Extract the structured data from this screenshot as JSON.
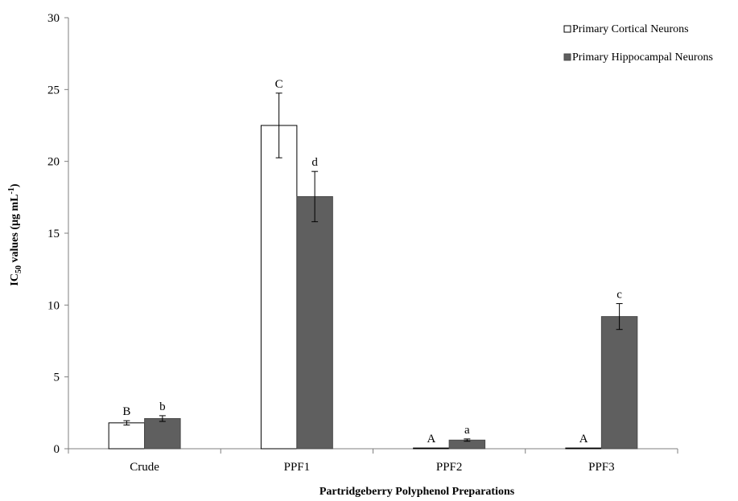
{
  "chart_data": {
    "type": "bar",
    "categories": [
      "Crude",
      "PPF1",
      "PPF2",
      "PPF3"
    ],
    "series": [
      {
        "name": "Primary Cortical Neurons",
        "values": [
          1.8,
          22.5,
          0.05,
          0.05
        ],
        "errors": [
          0.15,
          2.25,
          0.0,
          0.0
        ],
        "sig_labels": [
          "B",
          "C",
          "A",
          "A"
        ],
        "fill": "#ffffff",
        "stroke": "#000000"
      },
      {
        "name": "Primary Hippocampal Neurons",
        "values": [
          2.1,
          17.55,
          0.6,
          9.2
        ],
        "errors": [
          0.2,
          1.75,
          0.08,
          0.9
        ],
        "sig_labels": [
          "b",
          "d",
          "a",
          "c"
        ],
        "fill": "#5f5f5f",
        "stroke": "#4a4a4a"
      }
    ],
    "ylim": [
      0,
      30
    ],
    "yticks": [
      "0",
      "5",
      "10",
      "15",
      "20",
      "25",
      "30"
    ],
    "xlabel": "Partridgeberry Polyphenol Preparations",
    "ylabel_prefix": "IC",
    "ylabel_sub": "50",
    "ylabel_mid": " values (µg mL",
    "ylabel_sup": "-1",
    "ylabel_end": ")",
    "grid": false,
    "legend": "top-right"
  }
}
